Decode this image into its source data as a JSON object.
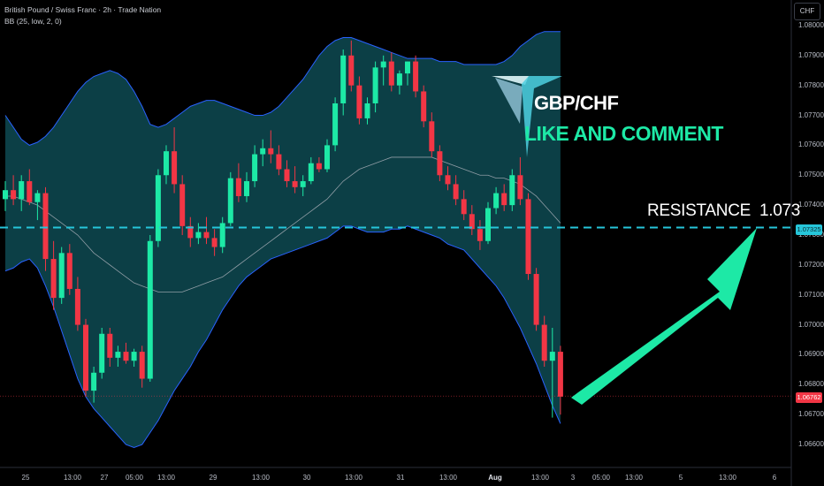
{
  "header": {
    "symbol_line": "British Pound / Swiss Franc · 2h · Trade Nation",
    "indicator_line": "BB (25, low, 2, 0)",
    "currency": "CHF"
  },
  "annotations": {
    "pair": "GBP/CHF",
    "call_to_action": "LIKE AND COMMENT",
    "resistance_label": "RESISTANCE",
    "resistance_value": "1.073"
  },
  "price_tags": {
    "resistance": "1.07325",
    "last": "1.06762"
  },
  "colors": {
    "up": "#22ab94",
    "up_bright": "#1de9a6",
    "down": "#f23645",
    "band_fill": "#0e4a52",
    "band_line": "#2962ff",
    "basis": "#b2b5be",
    "resistance_line": "#26c6da",
    "arrow": "#1de9a6"
  },
  "chart_data": {
    "type": "candlestick",
    "title": "British Pound / Swiss Franc · 2h · Trade Nation",
    "ylim": [
      1.0655,
      1.0805
    ],
    "y_ticks": [
      "1.08000",
      "1.07900",
      "1.07800",
      "1.07700",
      "1.07600",
      "1.07500",
      "1.07400",
      "1.07300",
      "1.07200",
      "1.07100",
      "1.07000",
      "1.06900",
      "1.06800",
      "1.06700",
      "1.06600"
    ],
    "x_ticks": [
      {
        "label": "25",
        "bold": false
      },
      {
        "label": "13:00",
        "bold": false
      },
      {
        "label": "27",
        "bold": false
      },
      {
        "label": "05:00",
        "bold": false
      },
      {
        "label": "13:00",
        "bold": false
      },
      {
        "label": "29",
        "bold": false
      },
      {
        "label": "13:00",
        "bold": false
      },
      {
        "label": "30",
        "bold": false
      },
      {
        "label": "13:00",
        "bold": false
      },
      {
        "label": "31",
        "bold": false
      },
      {
        "label": "13:00",
        "bold": false
      },
      {
        "label": "Aug",
        "bold": true
      },
      {
        "label": "13:00",
        "bold": false
      },
      {
        "label": "3",
        "bold": false
      },
      {
        "label": "05:00",
        "bold": false
      },
      {
        "label": "13:00",
        "bold": false
      },
      {
        "label": "5",
        "bold": false
      },
      {
        "label": "13:00",
        "bold": false
      },
      {
        "label": "6",
        "bold": false
      }
    ],
    "resistance_level": 1.07325,
    "last_price": 1.06762,
    "target_price": 1.073,
    "candles": [
      [
        1.0742,
        1.0748,
        1.0738,
        1.0745
      ],
      [
        1.0745,
        1.075,
        1.074,
        1.0742
      ],
      [
        1.0742,
        1.075,
        1.0738,
        1.0748
      ],
      [
        1.0748,
        1.0752,
        1.074,
        1.0741
      ],
      [
        1.0741,
        1.0745,
        1.0735,
        1.0744
      ],
      [
        1.0744,
        1.0746,
        1.0718,
        1.0722
      ],
      [
        1.0722,
        1.0728,
        1.0705,
        1.0709
      ],
      [
        1.0709,
        1.0726,
        1.0707,
        1.0724
      ],
      [
        1.0724,
        1.0727,
        1.071,
        1.0712
      ],
      [
        1.0712,
        1.0716,
        1.0698,
        1.07
      ],
      [
        1.07,
        1.0702,
        1.0676,
        1.0678
      ],
      [
        1.0678,
        1.0686,
        1.0674,
        1.0684
      ],
      [
        1.0684,
        1.0699,
        1.0682,
        1.0697
      ],
      [
        1.0697,
        1.0699,
        1.0686,
        1.0689
      ],
      [
        1.0689,
        1.0693,
        1.0686,
        1.0691
      ],
      [
        1.0691,
        1.0694,
        1.0687,
        1.0688
      ],
      [
        1.0688,
        1.0692,
        1.0686,
        1.0691
      ],
      [
        1.0691,
        1.0693,
        1.0679,
        1.0682
      ],
      [
        1.0682,
        1.073,
        1.0681,
        1.0728
      ],
      [
        1.0728,
        1.0752,
        1.0726,
        1.075
      ],
      [
        1.075,
        1.076,
        1.0747,
        1.0758
      ],
      [
        1.0758,
        1.0766,
        1.0744,
        1.0747
      ],
      [
        1.0747,
        1.075,
        1.073,
        1.0733
      ],
      [
        1.0733,
        1.0736,
        1.0726,
        1.0729
      ],
      [
        1.0729,
        1.0734,
        1.0727,
        1.0731
      ],
      [
        1.0731,
        1.0736,
        1.0727,
        1.0729
      ],
      [
        1.0729,
        1.0732,
        1.0723,
        1.0726
      ],
      [
        1.0726,
        1.0736,
        1.0724,
        1.0734
      ],
      [
        1.0734,
        1.0751,
        1.0733,
        1.0749
      ],
      [
        1.0749,
        1.0754,
        1.0741,
        1.0743
      ],
      [
        1.0743,
        1.0751,
        1.0741,
        1.0748
      ],
      [
        1.0748,
        1.076,
        1.0746,
        1.0757
      ],
      [
        1.0757,
        1.0762,
        1.0753,
        1.0759
      ],
      [
        1.0759,
        1.0765,
        1.0754,
        1.0757
      ],
      [
        1.0757,
        1.076,
        1.075,
        1.0752
      ],
      [
        1.0752,
        1.0755,
        1.0746,
        1.0748
      ],
      [
        1.0748,
        1.0753,
        1.0744,
        1.0746
      ],
      [
        1.0746,
        1.075,
        1.0743,
        1.0748
      ],
      [
        1.0748,
        1.0756,
        1.0747,
        1.0754
      ],
      [
        1.0754,
        1.0756,
        1.0751,
        1.0752
      ],
      [
        1.0752,
        1.0762,
        1.0751,
        1.076
      ],
      [
        1.076,
        1.0776,
        1.0758,
        1.0774
      ],
      [
        1.0774,
        1.0792,
        1.077,
        1.079
      ],
      [
        1.079,
        1.0795,
        1.0778,
        1.078
      ],
      [
        1.078,
        1.0783,
        1.0767,
        1.0769
      ],
      [
        1.0769,
        1.0776,
        1.0767,
        1.0774
      ],
      [
        1.0774,
        1.0788,
        1.0771,
        1.0786
      ],
      [
        1.0786,
        1.079,
        1.078,
        1.0788
      ],
      [
        1.0788,
        1.0791,
        1.0778,
        1.078
      ],
      [
        1.078,
        1.0785,
        1.0777,
        1.0784
      ],
      [
        1.0784,
        1.0788,
        1.078,
        1.0788
      ],
      [
        1.0788,
        1.079,
        1.0776,
        1.0778
      ],
      [
        1.0778,
        1.078,
        1.0766,
        1.0768
      ],
      [
        1.0768,
        1.0771,
        1.0756,
        1.0758
      ],
      [
        1.0758,
        1.076,
        1.0748,
        1.075
      ],
      [
        1.075,
        1.0753,
        1.0745,
        1.0747
      ],
      [
        1.0747,
        1.075,
        1.074,
        1.0742
      ],
      [
        1.0742,
        1.0745,
        1.0735,
        1.0737
      ],
      [
        1.0737,
        1.074,
        1.073,
        1.0732
      ],
      [
        1.0732,
        1.0735,
        1.0725,
        1.0728
      ],
      [
        1.0728,
        1.0741,
        1.0727,
        1.0739
      ],
      [
        1.0739,
        1.0746,
        1.0737,
        1.0744
      ],
      [
        1.0744,
        1.0747,
        1.0738,
        1.074
      ],
      [
        1.074,
        1.0752,
        1.0738,
        1.075
      ],
      [
        1.075,
        1.0756,
        1.074,
        1.0742
      ],
      [
        1.0742,
        1.0744,
        1.0715,
        1.0717
      ],
      [
        1.0717,
        1.0719,
        1.0698,
        1.07
      ],
      [
        1.07,
        1.0703,
        1.0686,
        1.0688
      ],
      [
        1.0688,
        1.0699,
        1.0669,
        1.0691
      ],
      [
        1.0691,
        1.0693,
        1.067,
        1.0676
      ]
    ],
    "bb_upper": [
      1.077,
      1.0766,
      1.0762,
      1.076,
      1.0761,
      1.0763,
      1.0766,
      1.077,
      1.0774,
      1.0778,
      1.0781,
      1.0783,
      1.0784,
      1.0785,
      1.0784,
      1.0782,
      1.0778,
      1.0773,
      1.0767,
      1.0766,
      1.0767,
      1.0769,
      1.0771,
      1.0773,
      1.0774,
      1.0775,
      1.0775,
      1.0774,
      1.0773,
      1.0772,
      1.0771,
      1.077,
      1.077,
      1.0771,
      1.0773,
      1.0776,
      1.0779,
      1.0782,
      1.0786,
      1.079,
      1.0793,
      1.0795,
      1.0796,
      1.0796,
      1.0795,
      1.0794,
      1.0793,
      1.0792,
      1.0791,
      1.079,
      1.0789,
      1.0789,
      1.0789,
      1.0789,
      1.0788,
      1.0788,
      1.0788,
      1.0787,
      1.0787,
      1.0787,
      1.0787,
      1.0787,
      1.0788,
      1.079,
      1.0793,
      1.0795,
      1.0797,
      1.0798,
      1.0798,
      1.0798
    ],
    "bb_basis": [
      1.0743,
      1.0743,
      1.0742,
      1.0741,
      1.074,
      1.0738,
      1.0736,
      1.0734,
      1.0732,
      1.073,
      1.0727,
      1.0724,
      1.0722,
      1.072,
      1.0718,
      1.0716,
      1.0714,
      1.0713,
      1.0712,
      1.0711,
      1.0711,
      1.0711,
      1.0711,
      1.0712,
      1.0713,
      1.0714,
      1.0715,
      1.0716,
      1.0718,
      1.072,
      1.0722,
      1.0724,
      1.0726,
      1.0728,
      1.073,
      1.0732,
      1.0734,
      1.0736,
      1.0738,
      1.074,
      1.0742,
      1.0745,
      1.0748,
      1.075,
      1.0752,
      1.0753,
      1.0754,
      1.0755,
      1.0756,
      1.0756,
      1.0756,
      1.0756,
      1.0756,
      1.0756,
      1.0755,
      1.0754,
      1.0753,
      1.0752,
      1.0751,
      1.075,
      1.075,
      1.0749,
      1.0749,
      1.0748,
      1.0747,
      1.0745,
      1.0743,
      1.074,
      1.0737,
      1.0734
    ],
    "bb_lower": [
      1.0718,
      1.0719,
      1.0721,
      1.0722,
      1.0719,
      1.0713,
      1.0706,
      1.0698,
      1.069,
      1.0682,
      1.0676,
      1.0672,
      1.0669,
      1.0666,
      1.0663,
      1.066,
      1.0659,
      1.066,
      1.0664,
      1.0668,
      1.0673,
      1.0678,
      1.0682,
      1.0686,
      1.0691,
      1.0695,
      1.07,
      1.0705,
      1.0709,
      1.0713,
      1.0716,
      1.0718,
      1.072,
      1.0722,
      1.0723,
      1.0724,
      1.0725,
      1.0726,
      1.0727,
      1.0728,
      1.0729,
      1.0731,
      1.0733,
      1.0733,
      1.0732,
      1.0731,
      1.0731,
      1.0731,
      1.0732,
      1.0732,
      1.0733,
      1.0732,
      1.0731,
      1.073,
      1.0729,
      1.0727,
      1.0726,
      1.0725,
      1.0722,
      1.0719,
      1.0716,
      1.0713,
      1.0709,
      1.0704,
      1.0699,
      1.0693,
      1.0687,
      1.068,
      1.0673,
      1.0667
    ]
  }
}
